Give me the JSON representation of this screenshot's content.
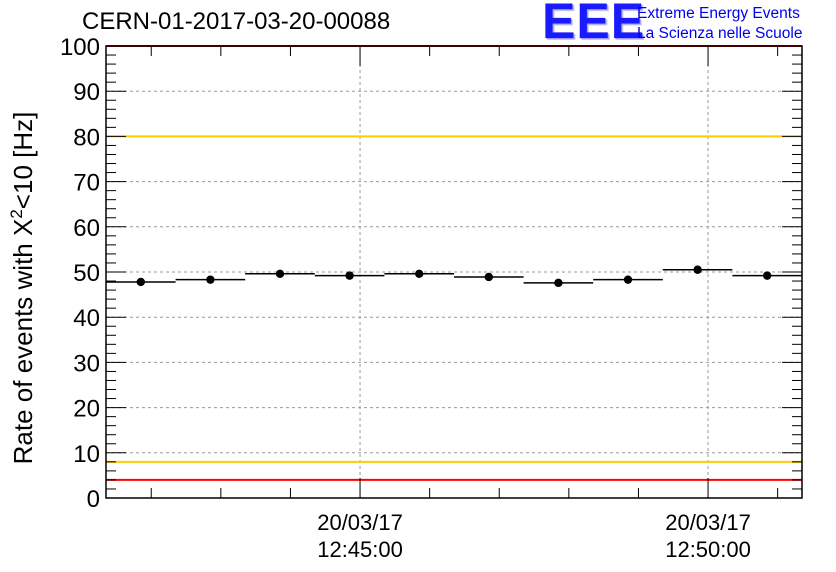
{
  "title": "CERN-01-2017-03-20-00088",
  "logo": {
    "mark": "EEE",
    "line1": "Extreme Energy Events",
    "line2": "La Scienza nelle Scuole",
    "color": "#1a1aff"
  },
  "chart_data": {
    "type": "scatter",
    "title": "CERN-01-2017-03-20-00088",
    "ylabel_main": "Rate of events with X",
    "ylabel_sup": "2",
    "ylabel_tail": "<10 [Hz]",
    "xlabel": "",
    "ylim": [
      0,
      100
    ],
    "yticks": [
      "0",
      "10",
      "20",
      "30",
      "40",
      "50",
      "60",
      "70",
      "80",
      "90",
      "100"
    ],
    "xlim": [
      "12:41:21",
      "12:51:21"
    ],
    "xticks": [
      {
        "x": "12:45:00",
        "date": "20/03/17",
        "time": "12:45:00"
      },
      {
        "x": "12:50:00",
        "date": "20/03/17",
        "time": "12:50:00"
      }
    ],
    "grid": true,
    "points": [
      {
        "x": "12:41:51",
        "y": 47.8
      },
      {
        "x": "12:42:51",
        "y": 48.3
      },
      {
        "x": "12:43:51",
        "y": 49.6
      },
      {
        "x": "12:44:51",
        "y": 49.2
      },
      {
        "x": "12:45:51",
        "y": 49.6
      },
      {
        "x": "12:46:51",
        "y": 48.9
      },
      {
        "x": "12:47:51",
        "y": 47.6
      },
      {
        "x": "12:48:51",
        "y": 48.3
      },
      {
        "x": "12:49:51",
        "y": 50.5
      },
      {
        "x": "12:50:51",
        "y": 49.2
      }
    ],
    "bin_width_seconds": 60,
    "reference_lines": [
      {
        "y": 100,
        "color": "#ff0000"
      },
      {
        "y": 80,
        "color": "#ffcc00"
      },
      {
        "y": 8,
        "color": "#ffcc00"
      },
      {
        "y": 4,
        "color": "#ff0000"
      }
    ],
    "marker_color": "#000000"
  }
}
